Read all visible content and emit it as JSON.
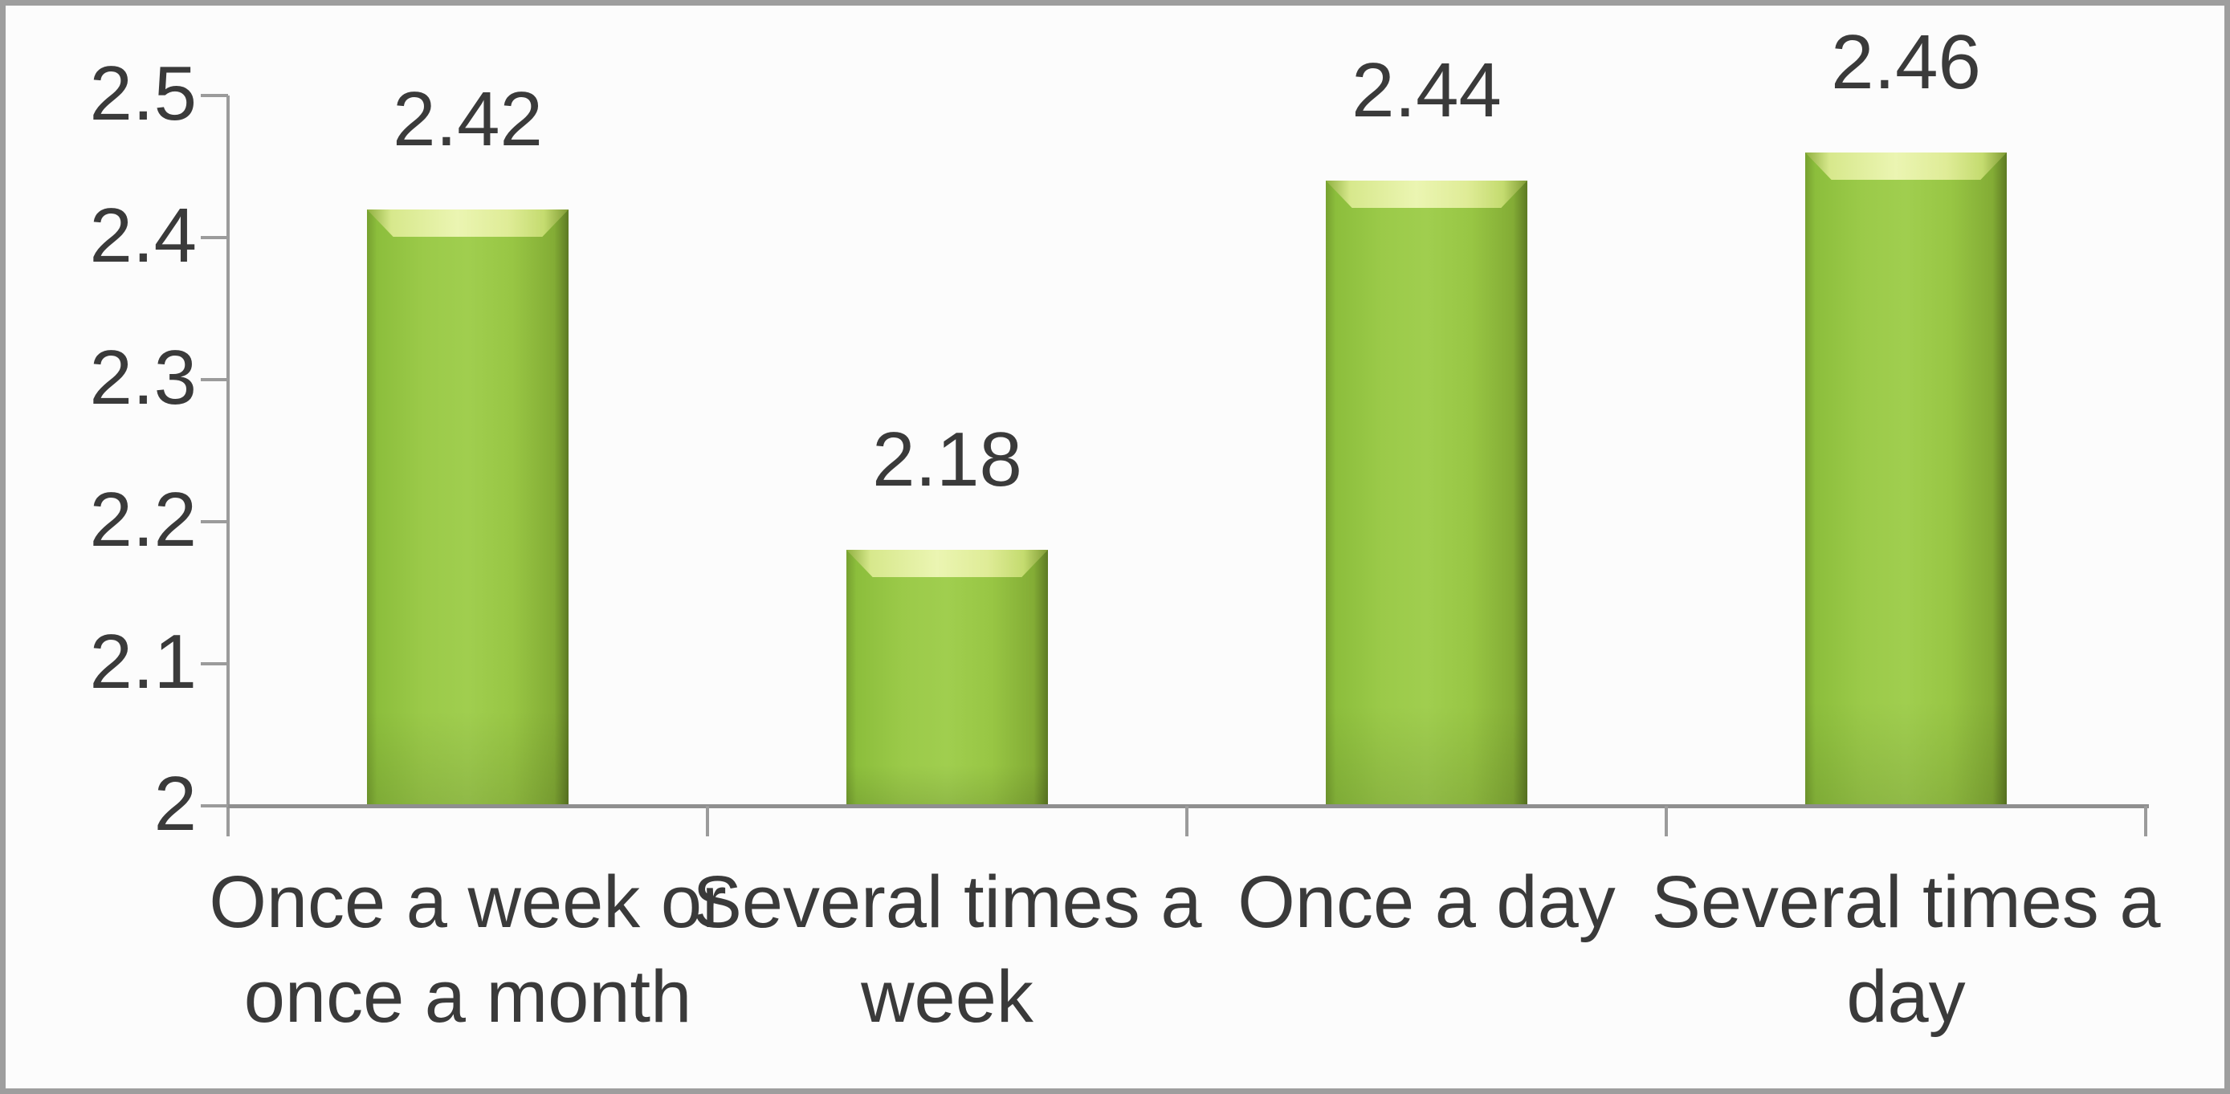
{
  "chart_data": {
    "type": "bar",
    "title": "",
    "xlabel": "",
    "ylabel": "",
    "categories": [
      "Once a week or\nonce a month",
      "Several times a\nweek",
      "Once a day",
      "Several times a\nday"
    ],
    "values": [
      2.42,
      2.18,
      2.44,
      2.46
    ],
    "data_labels": [
      "2.42",
      "2.18",
      "2.44",
      "2.46"
    ],
    "yticks": [
      "2.5",
      "2.4",
      "2.3",
      "2.2",
      "2.1",
      "2"
    ],
    "ylim": [
      2,
      2.5
    ],
    "grid": false,
    "legend": "none",
    "colors": {
      "bar_fill": "#8DC63F",
      "bar_highlight": "#EBF5B2",
      "bar_edge": "#5D7A23",
      "axis": "#9B9B9B",
      "text": "#3A3A3A",
      "frame_border": "#9E9E9E",
      "background": "#FCFCFC"
    }
  }
}
